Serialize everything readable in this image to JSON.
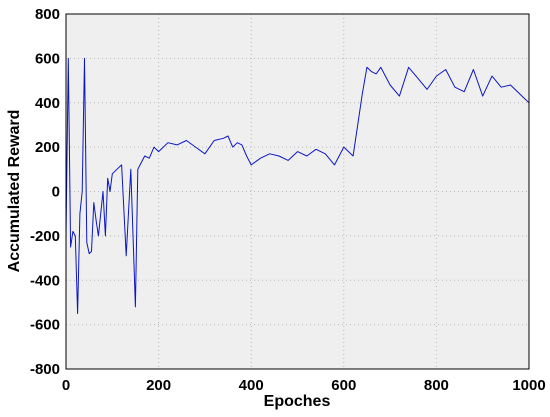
{
  "chart_data": {
    "type": "line",
    "xlabel": "Epoches",
    "ylabel": "Accumulated Reward",
    "xlim": [
      0,
      1000
    ],
    "ylim": [
      -800,
      800
    ],
    "x_ticks": [
      "0",
      "200",
      "400",
      "600",
      "800",
      "1000"
    ],
    "y_ticks": [
      "800",
      "600",
      "400",
      "200",
      "0",
      "-200",
      "-400",
      "-600",
      "-800"
    ],
    "grid": true,
    "legend": "none",
    "series": [
      {
        "color": "#0b17c4",
        "x": [
          0,
          5,
          10,
          15,
          20,
          25,
          30,
          35,
          40,
          45,
          50,
          55,
          60,
          65,
          70,
          75,
          80,
          85,
          90,
          95,
          100,
          110,
          120,
          130,
          140,
          150,
          155,
          160,
          170,
          180,
          190,
          200,
          220,
          240,
          260,
          280,
          300,
          320,
          340,
          350,
          360,
          370,
          380,
          390,
          400,
          420,
          440,
          460,
          480,
          500,
          520,
          540,
          560,
          580,
          600,
          620,
          640,
          650,
          660,
          670,
          680,
          700,
          720,
          740,
          760,
          780,
          800,
          820,
          840,
          860,
          880,
          900,
          920,
          940,
          960,
          980,
          1000
        ],
        "y": [
          -200,
          600,
          -250,
          -180,
          -200,
          -550,
          -100,
          0,
          600,
          -230,
          -280,
          -270,
          -50,
          -130,
          -200,
          -100,
          0,
          -200,
          60,
          0,
          80,
          100,
          120,
          -290,
          100,
          -520,
          100,
          120,
          160,
          150,
          200,
          180,
          220,
          210,
          230,
          200,
          170,
          230,
          240,
          250,
          200,
          220,
          210,
          160,
          120,
          150,
          170,
          160,
          140,
          180,
          160,
          190,
          170,
          120,
          200,
          160,
          440,
          560,
          540,
          530,
          560,
          480,
          430,
          560,
          510,
          460,
          520,
          550,
          470,
          450,
          550,
          430,
          520,
          470,
          480,
          440,
          400
        ]
      }
    ]
  }
}
